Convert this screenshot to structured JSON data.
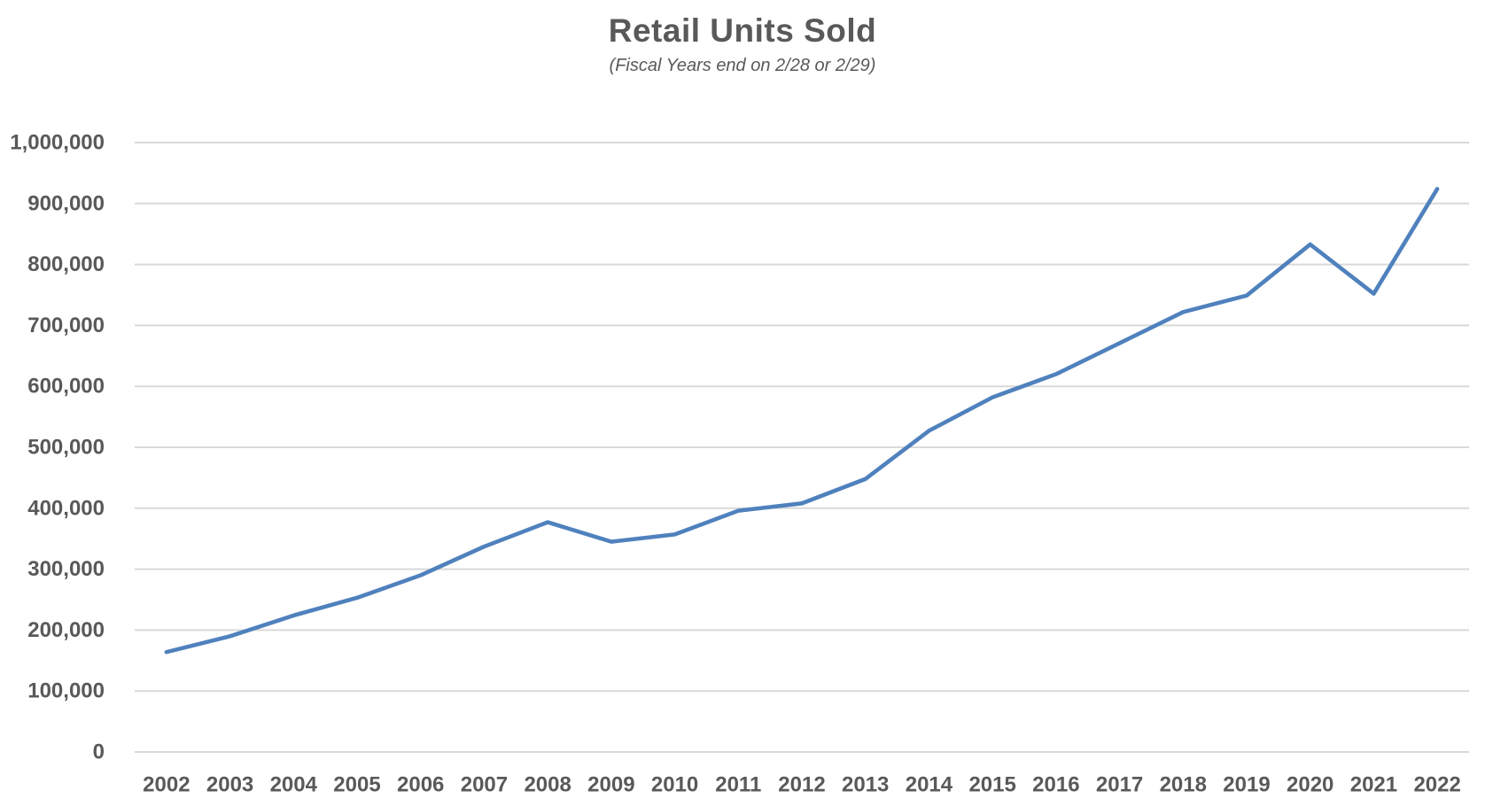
{
  "header": {
    "title": "Retail Units Sold",
    "subtitle": "(Fiscal Years end on 2/28 or 2/29)"
  },
  "chart_data": {
    "type": "line",
    "title": "Retail Units Sold",
    "subtitle": "(Fiscal Years end on 2/28 or 2/29)",
    "categories": [
      "2002",
      "2003",
      "2004",
      "2005",
      "2006",
      "2007",
      "2008",
      "2009",
      "2010",
      "2011",
      "2012",
      "2013",
      "2014",
      "2015",
      "2016",
      "2017",
      "2018",
      "2019",
      "2020",
      "2021",
      "2022"
    ],
    "series": [
      {
        "name": "Retail Units Sold",
        "values": [
          164000,
          190000,
          224000,
          253000,
          290000,
          337000,
          377000,
          345000,
          357000,
          396000,
          408000,
          448000,
          527000,
          582000,
          620000,
          671000,
          722000,
          749000,
          833000,
          752000,
          924000
        ]
      }
    ],
    "xlabel": "",
    "ylabel": "",
    "ylim": [
      0,
      1000000
    ],
    "ytick_values": [
      0,
      100000,
      200000,
      300000,
      400000,
      500000,
      600000,
      700000,
      800000,
      900000,
      1000000
    ],
    "ytick_labels": [
      "0",
      "100,000",
      "200,000",
      "300,000",
      "400,000",
      "500,000",
      "600,000",
      "700,000",
      "800,000",
      "900,000",
      "1,000,000"
    ],
    "grid": true,
    "legend": false,
    "colors": {
      "line": "#4F81BD",
      "grid": "#D9D9D9",
      "text": "#595959",
      "background": "#FFFFFF"
    },
    "line_width": 4.6
  }
}
